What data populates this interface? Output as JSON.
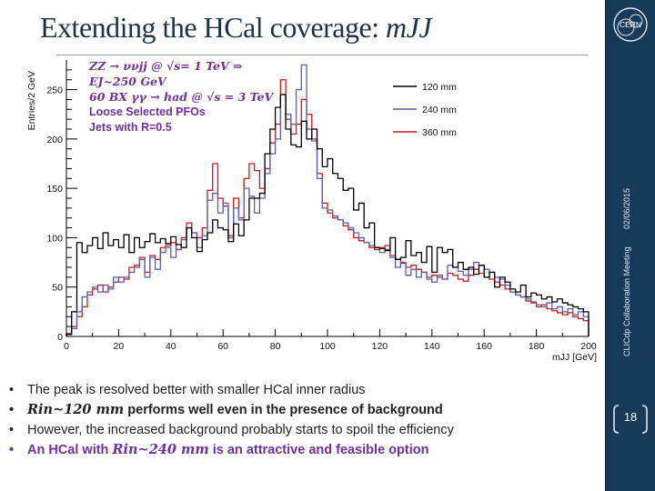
{
  "title": {
    "prefix": "Extending the HCal coverage: ",
    "variable": "mJJ"
  },
  "sidebar": {
    "logo_text": "CERN",
    "meeting": "CLICdp Collaboration Meeting",
    "date": "02/06/2015",
    "page_number": "18"
  },
  "annotation": {
    "line1": "ZZ → ννjj @ √s= 1 TeV ⇒",
    "line2": "EJ~250 GeV",
    "line3": "60 BX γγ → had @ √s = 3 TeV",
    "line4": "Loose Selected PFOs",
    "line5": "Jets with R=0.5"
  },
  "bullets": [
    {
      "text": "The peak is resolved better with smaller HCal inner radius"
    },
    {
      "lead": "Rin~120 mm",
      "text": " performs well even in the presence of background"
    },
    {
      "text": "However, the increased background probably starts to spoil the efficiency"
    },
    {
      "text": "An HCal with ",
      "lead": "Rin~240 mm",
      "tail": " is an attractive and feasible option"
    }
  ],
  "chart_data": {
    "type": "line",
    "style": "step-histogram",
    "xlabel": "mJJ [GeV]",
    "ylabel": "Entries/2 GeV",
    "xlim": [
      0,
      200
    ],
    "ylim": [
      0,
      280
    ],
    "xticks": [
      "0",
      "20",
      "40",
      "60",
      "80",
      "100",
      "120",
      "140",
      "160",
      "180",
      "200"
    ],
    "yticks": [
      "0",
      "50",
      "100",
      "150",
      "200",
      "250"
    ],
    "bin_width": 2,
    "legend_position": "top-right",
    "colors": {
      "120 mm": "#000000",
      "240 mm": "#5a5fb0",
      "360 mm": "#d01818"
    },
    "series": [
      {
        "name": "120 mm",
        "values": [
          2,
          25,
          95,
          85,
          92,
          100,
          89,
          105,
          92,
          98,
          90,
          103,
          85,
          100,
          90,
          96,
          104,
          95,
          99,
          94,
          101,
          93,
          90,
          110,
          100,
          86,
          98,
          105,
          118,
          110,
          108,
          96,
          114,
          102,
          118,
          140,
          140,
          145,
          185,
          210,
          232,
          245,
          210,
          194,
          192,
          218,
          200,
          210,
          190,
          172,
          180,
          165,
          160,
          148,
          150,
          128,
          135,
          110,
          115,
          90,
          89,
          87,
          100,
          78,
          80,
          97,
          82,
          85,
          75,
          91,
          65,
          90,
          85,
          88,
          70,
          75,
          68,
          70,
          63,
          72,
          60,
          65,
          50,
          60,
          55,
          48,
          45,
          52,
          40,
          44,
          42,
          38,
          40,
          35,
          38,
          34,
          32,
          30,
          28,
          25
        ]
      },
      {
        "name": "240 mm",
        "values": [
          2,
          8,
          25,
          40,
          45,
          50,
          45,
          52,
          48,
          60,
          55,
          60,
          65,
          70,
          78,
          60,
          80,
          68,
          85,
          90,
          80,
          88,
          98,
          110,
          105,
          90,
          102,
          138,
          145,
          125,
          135,
          100,
          130,
          118,
          150,
          142,
          125,
          140,
          165,
          185,
          200,
          245,
          225,
          215,
          250,
          275,
          210,
          198,
          160,
          130,
          128,
          122,
          118,
          115,
          110,
          105,
          100,
          95,
          92,
          90,
          85,
          88,
          80,
          70,
          75,
          62,
          68,
          60,
          65,
          58,
          55,
          62,
          58,
          72,
          70,
          66,
          62,
          68,
          75,
          72,
          68,
          65,
          60,
          58,
          52,
          45,
          42,
          40,
          38,
          35,
          32,
          30,
          34,
          28,
          30,
          25,
          28,
          22,
          25,
          20
        ]
      },
      {
        "name": "360 mm",
        "values": [
          3,
          10,
          20,
          30,
          42,
          48,
          52,
          45,
          50,
          55,
          60,
          58,
          70,
          72,
          80,
          65,
          82,
          78,
          90,
          92,
          95,
          88,
          100,
          115,
          105,
          100,
          110,
          148,
          175,
          140,
          132,
          102,
          140,
          120,
          160,
          175,
          168,
          150,
          170,
          196,
          215,
          260,
          220,
          205,
          215,
          240,
          225,
          200,
          165,
          135,
          125,
          120,
          118,
          112,
          108,
          100,
          97,
          95,
          90,
          88,
          90,
          92,
          82,
          78,
          74,
          70,
          72,
          68,
          65,
          60,
          62,
          60,
          58,
          64,
          62,
          58,
          56,
          62,
          68,
          64,
          60,
          58,
          55,
          52,
          48,
          45,
          42,
          40,
          36,
          34,
          30,
          32,
          28,
          26,
          24,
          22,
          24,
          20,
          18,
          16
        ]
      }
    ]
  }
}
